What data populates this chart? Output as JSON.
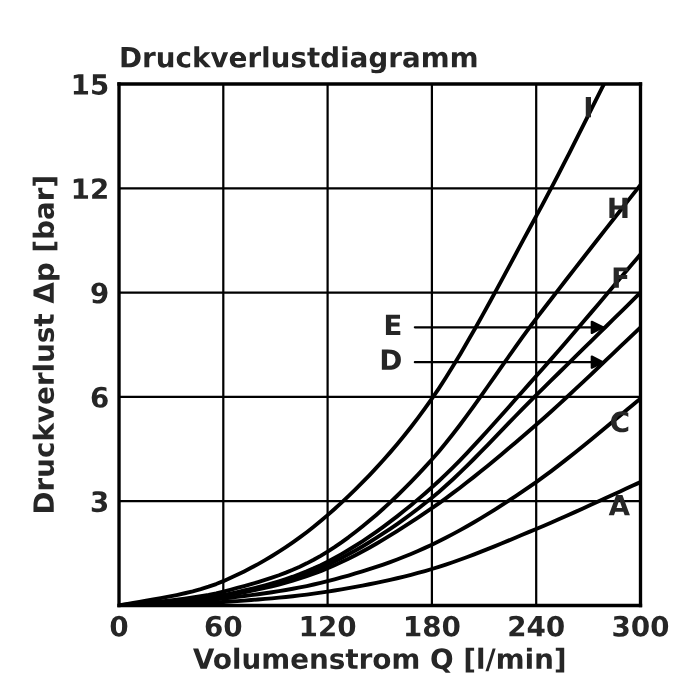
{
  "chart_data": {
    "type": "line",
    "title": "Druckverlustdiagramm",
    "xlabel": "Volumenstrom Q [l/min]",
    "ylabel": "Druckverlust Δp [bar]",
    "xlim": [
      0,
      300
    ],
    "ylim": [
      0,
      15
    ],
    "xticks": [
      0,
      60,
      120,
      180,
      240,
      300
    ],
    "yticks": [
      {
        "value": 0,
        "label": null
      },
      3,
      6,
      9,
      12,
      15
    ],
    "grid": true,
    "legend": false,
    "marker": "none",
    "line_style": "solid",
    "x": [
      0,
      60,
      120,
      180,
      240,
      300
    ],
    "series": [
      {
        "name": "A",
        "color": "#000000",
        "values": [
          0,
          0.1,
          0.4,
          1.05,
          2.2,
          3.55
        ]
      },
      {
        "name": "C",
        "color": "#000000",
        "values": [
          0,
          0.2,
          0.7,
          1.75,
          3.55,
          5.95
        ]
      },
      {
        "color": "#000000",
        "values": [
          0,
          0.27,
          1.07,
          2.8,
          5.2,
          8.0
        ]
      },
      {
        "color": "#000000",
        "values": [
          0,
          0.28,
          1.17,
          3.1,
          6.05,
          9.0
        ]
      },
      {
        "name": "F",
        "color": "#000000",
        "values": [
          0,
          0.3,
          1.26,
          3.4,
          6.6,
          10.1
        ]
      },
      {
        "name": "H",
        "color": "#000000",
        "values": [
          0,
          0.4,
          1.55,
          4.2,
          8.25,
          12.1
        ]
      },
      {
        "name": "I",
        "color": "#000000",
        "x": [
          0,
          60,
          120,
          180,
          240,
          279
        ],
        "values": [
          0,
          0.7,
          2.6,
          5.95,
          11.2,
          15
        ]
      }
    ],
    "annotations": [
      {
        "text": "E",
        "x": 283,
        "y": 8.0
      },
      {
        "text": "D",
        "x": 283,
        "y": 7.0
      }
    ]
  }
}
